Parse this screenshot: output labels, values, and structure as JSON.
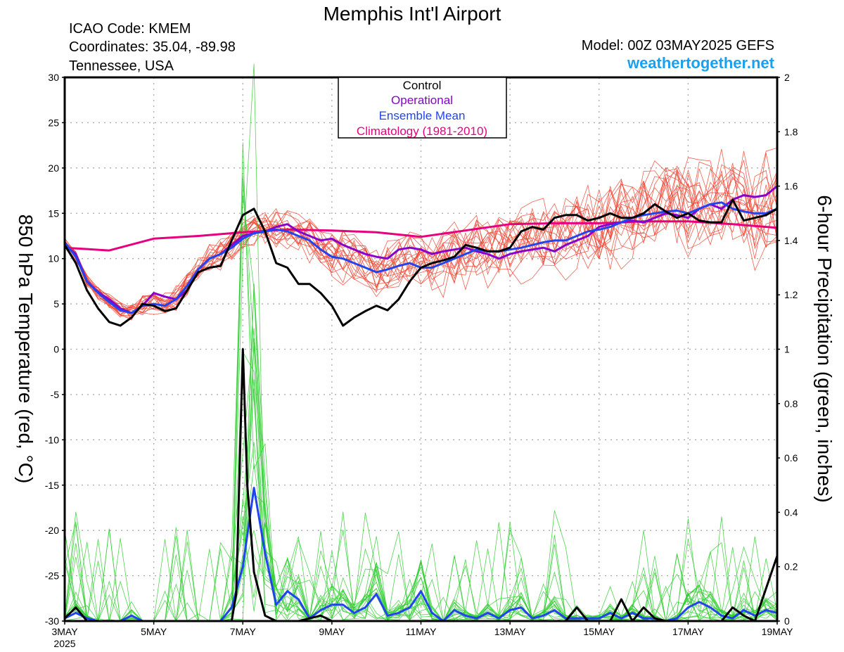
{
  "header": {
    "title": "Memphis Int'l Airport",
    "icao": "ICAO Code: KMEM",
    "coords": "Coordinates: 35.04, -89.98",
    "region": "Tennessee, USA",
    "model": "Model: 00Z 03MAY2025 GEFS",
    "site": "weathertogether.net"
  },
  "colors": {
    "members_temp": "#ee4433",
    "members_precip": "#33cc33",
    "control": "#000000",
    "operational": "#8800cc",
    "ensemble_mean": "#2244ee",
    "climatology": "#e6007e",
    "site": "#1aa0f0"
  },
  "chart_data": {
    "type": "line",
    "title": "Memphis Int'l Airport",
    "xlabel": "",
    "ylabel": "850 hPa Temperature (red, °C)",
    "y2label": "6-hour Precipitation (green, inches)",
    "xlim": [
      0,
      16
    ],
    "ylim": [
      -30,
      30
    ],
    "y2lim": [
      0,
      2
    ],
    "x_unit_note_hidden": true,
    "x_ticks": [
      {
        "x": 0,
        "label": "3MAY",
        "sub": "2025"
      },
      {
        "x": 2,
        "label": "5MAY"
      },
      {
        "x": 4,
        "label": "7MAY"
      },
      {
        "x": 6,
        "label": "9MAY"
      },
      {
        "x": 8,
        "label": "11MAY"
      },
      {
        "x": 10,
        "label": "13MAY"
      },
      {
        "x": 12,
        "label": "15MAY"
      },
      {
        "x": 14,
        "label": "17MAY"
      },
      {
        "x": 16,
        "label": "19MAY"
      }
    ],
    "y_ticks": [
      30,
      25,
      20,
      15,
      10,
      5,
      0,
      -5,
      -10,
      -15,
      -20,
      -25,
      -30
    ],
    "y2_ticks": [
      2,
      1.8,
      1.6,
      1.4,
      1.2,
      1,
      0.8,
      0.6,
      0.4,
      0.2,
      0
    ],
    "grid": true,
    "legend": {
      "placement": "top-center",
      "entries": [
        "Control",
        "Operational",
        "Ensemble Mean",
        "Climatology (1981-2010)"
      ]
    },
    "series": [
      {
        "key": "climatology",
        "axis": "left",
        "x": [
          0,
          1,
          2,
          3,
          4,
          5,
          6,
          7,
          8,
          9,
          10,
          11,
          12,
          13,
          14,
          15,
          16
        ],
        "values": [
          11.2,
          10.9,
          12.2,
          12.5,
          12.9,
          13.2,
          13.1,
          12.9,
          12.4,
          13.1,
          13.8,
          13.9,
          13.9,
          14.1,
          14.1,
          13.8,
          13.4
        ]
      },
      {
        "key": "operational",
        "axis": "left",
        "x": [
          0,
          0.25,
          0.5,
          0.75,
          1,
          1.25,
          1.5,
          1.75,
          2,
          2.25,
          2.5,
          2.75,
          3,
          3.25,
          3.5,
          3.75,
          4,
          4.25,
          4.5,
          4.75,
          5,
          5.25,
          5.5,
          5.75,
          6,
          6.25,
          6.5,
          6.75,
          7,
          7.25,
          7.5,
          7.75,
          8,
          8.25,
          8.5,
          8.75,
          9,
          9.25,
          9.5,
          9.75,
          10,
          10.25,
          10.5,
          10.75,
          11,
          11.25,
          11.5,
          11.75,
          12,
          12.25,
          12.5,
          12.75,
          13,
          13.25,
          13.5,
          13.75,
          14,
          14.25,
          14.5,
          14.75,
          15,
          15.25,
          15.5,
          15.75,
          16
        ],
        "values": [
          11.5,
          10.5,
          7.5,
          6.3,
          5.5,
          4.5,
          4.0,
          4.8,
          6.2,
          5.8,
          5.5,
          6.5,
          8.8,
          10.0,
          10.5,
          11.5,
          12.5,
          12.8,
          13.0,
          13.5,
          13.8,
          13.0,
          12.5,
          12.0,
          12.2,
          11.5,
          11.0,
          10.5,
          10.2,
          10.0,
          11.0,
          11.2,
          11.0,
          10.5,
          10.8,
          11.0,
          11.2,
          10.8,
          10.5,
          10.0,
          10.5,
          10.8,
          11.0,
          11.2,
          10.8,
          11.5,
          12.0,
          12.5,
          13.5,
          13.8,
          14.0,
          14.2,
          14.0,
          14.5,
          15.0,
          14.8,
          14.5,
          15.5,
          16.0,
          15.5,
          16.5,
          17.0,
          16.8,
          17.0,
          18.0
        ]
      },
      {
        "key": "ensemble_mean",
        "axis": "left",
        "x": [
          0,
          0.25,
          0.5,
          0.75,
          1,
          1.25,
          1.5,
          1.75,
          2,
          2.25,
          2.5,
          2.75,
          3,
          3.25,
          3.5,
          3.75,
          4,
          4.25,
          4.5,
          4.75,
          5,
          5.25,
          5.5,
          5.75,
          6,
          6.25,
          6.5,
          6.75,
          7,
          7.25,
          7.5,
          7.75,
          8,
          8.25,
          8.5,
          8.75,
          9,
          9.25,
          9.5,
          9.75,
          10,
          10.25,
          10.5,
          10.75,
          11,
          11.25,
          11.5,
          11.75,
          12,
          12.25,
          12.5,
          12.75,
          13,
          13.25,
          13.5,
          13.75,
          14,
          14.25,
          14.5,
          14.75,
          15,
          15.25,
          15.5,
          15.75,
          16
        ],
        "values": [
          11.8,
          10.2,
          7.5,
          6.2,
          5.2,
          4.3,
          4.0,
          4.8,
          5.0,
          4.8,
          5.5,
          7.0,
          8.8,
          10.0,
          10.5,
          11.2,
          12.2,
          12.8,
          13.0,
          13.2,
          13.0,
          12.5,
          12.0,
          11.0,
          10.2,
          10.0,
          9.5,
          9.0,
          8.5,
          8.8,
          9.2,
          9.5,
          9.0,
          9.0,
          9.5,
          10.0,
          10.5,
          11.0,
          10.8,
          10.8,
          11.0,
          11.2,
          11.5,
          11.8,
          12.0,
          12.0,
          12.5,
          13.0,
          13.2,
          13.5,
          14.0,
          14.5,
          14.8,
          15.0,
          15.2,
          15.3,
          15.0,
          15.5,
          16.0,
          16.2,
          15.5,
          15.2,
          15.0,
          15.0,
          15.5
        ]
      },
      {
        "key": "control",
        "axis": "left",
        "x": [
          0,
          0.25,
          0.5,
          0.75,
          1,
          1.25,
          1.5,
          1.75,
          2,
          2.25,
          2.5,
          2.75,
          3,
          3.25,
          3.5,
          3.75,
          4,
          4.25,
          4.5,
          4.75,
          5,
          5.25,
          5.5,
          5.75,
          6,
          6.25,
          6.5,
          6.75,
          7,
          7.25,
          7.5,
          7.75,
          8,
          8.25,
          8.5,
          8.75,
          9,
          9.25,
          9.5,
          9.75,
          10,
          10.25,
          10.5,
          10.75,
          11,
          11.25,
          11.5,
          11.75,
          12,
          12.25,
          12.5,
          12.75,
          13,
          13.25,
          13.5,
          13.75,
          14,
          14.25,
          14.5,
          14.75,
          15,
          15.25,
          15.5,
          15.75,
          16
        ],
        "values": [
          11.5,
          9.5,
          6.5,
          4.5,
          3.0,
          2.6,
          3.5,
          5.0,
          4.8,
          4.2,
          4.5,
          6.5,
          8.5,
          9.0,
          9.2,
          12.0,
          14.8,
          15.5,
          13.0,
          9.5,
          9.0,
          7.2,
          7.2,
          6.2,
          4.8,
          2.6,
          3.5,
          4.2,
          4.8,
          4.3,
          5.5,
          7.5,
          9.0,
          9.5,
          9.8,
          10.2,
          11.5,
          11.2,
          10.8,
          10.8,
          11.2,
          13.0,
          13.5,
          13.2,
          14.5,
          14.8,
          14.8,
          14.2,
          14.5,
          15.0,
          14.5,
          14.5,
          15.0,
          16.0,
          15.2,
          14.5,
          15.0,
          14.2,
          14.0,
          14.0,
          16.5,
          14.2,
          14.5,
          14.8,
          15.5
        ]
      },
      {
        "key": "control_precip",
        "axis": "right",
        "x": [
          0,
          0.25,
          0.5,
          0.75,
          1,
          1.25,
          1.5,
          1.75,
          2,
          2.25,
          2.5,
          2.75,
          3,
          3.25,
          3.5,
          3.75,
          3.85,
          4.0,
          4.1,
          4.25,
          4.5,
          4.75,
          5,
          5.25,
          5.5,
          5.75,
          6,
          6.25,
          6.5,
          6.75,
          7,
          7.25,
          7.5,
          7.75,
          8,
          8.25,
          8.5,
          8.75,
          9,
          9.25,
          9.5,
          9.75,
          10,
          10.25,
          10.5,
          10.75,
          11,
          11.25,
          11.5,
          11.75,
          12,
          12.25,
          12.5,
          12.75,
          13,
          13.25,
          13.5,
          13.75,
          14,
          14.25,
          14.5,
          14.75,
          15,
          15.25,
          15.5,
          15.75,
          16
        ],
        "values": [
          0.01,
          0.05,
          0,
          0,
          0,
          0,
          0,
          0,
          0,
          0,
          0,
          0,
          0,
          0,
          0,
          0,
          0.1,
          1.0,
          0.5,
          0.18,
          0.02,
          0,
          0,
          0,
          0.01,
          0.02,
          0,
          0,
          0,
          0,
          0,
          0,
          0,
          0,
          0,
          0,
          0,
          0,
          0,
          0,
          0,
          0,
          0,
          0,
          0,
          0,
          0,
          0,
          0.05,
          0,
          0,
          0,
          0.08,
          0,
          0.05,
          0.01,
          0,
          0,
          0,
          0,
          0,
          0,
          0.05,
          0.02,
          0,
          0.12,
          0.24
        ]
      },
      {
        "key": "ensemble_mean_precip",
        "axis": "right",
        "x": [
          0,
          0.25,
          0.5,
          0.75,
          1,
          1.25,
          1.5,
          1.75,
          2,
          2.25,
          2.5,
          2.75,
          3,
          3.25,
          3.5,
          3.75,
          4,
          4.25,
          4.5,
          4.75,
          5,
          5.25,
          5.5,
          5.75,
          6,
          6.25,
          6.5,
          6.75,
          7,
          7.25,
          7.5,
          7.75,
          8,
          8.25,
          8.5,
          8.75,
          9,
          9.25,
          9.5,
          9.75,
          10,
          10.25,
          10.5,
          10.75,
          11,
          11.25,
          11.5,
          11.75,
          12,
          12.25,
          12.5,
          12.75,
          13,
          13.25,
          13.5,
          13.75,
          14,
          14.25,
          14.5,
          14.75,
          15,
          15.25,
          15.5,
          15.75,
          16
        ],
        "values": [
          0.01,
          0.03,
          0.01,
          0,
          0,
          0,
          0.02,
          0,
          0,
          0,
          0,
          0,
          0,
          0,
          0,
          0.05,
          0.2,
          0.49,
          0.25,
          0.06,
          0.11,
          0.08,
          0.01,
          0.04,
          0.06,
          0.06,
          0.03,
          0.05,
          0.1,
          0.02,
          0.03,
          0.05,
          0.11,
          0.03,
          0,
          0.04,
          0.02,
          0.01,
          0.03,
          0.01,
          0.04,
          0.05,
          0.01,
          0.02,
          0.04,
          0.01,
          0.01,
          0.01,
          0.01,
          0.03,
          0.01,
          0.03,
          0.01,
          0.01,
          0,
          0.01,
          0.05,
          0.07,
          0.05,
          0.02,
          0.01,
          0.04,
          0.02,
          0.04,
          0.03
        ]
      }
    ]
  }
}
